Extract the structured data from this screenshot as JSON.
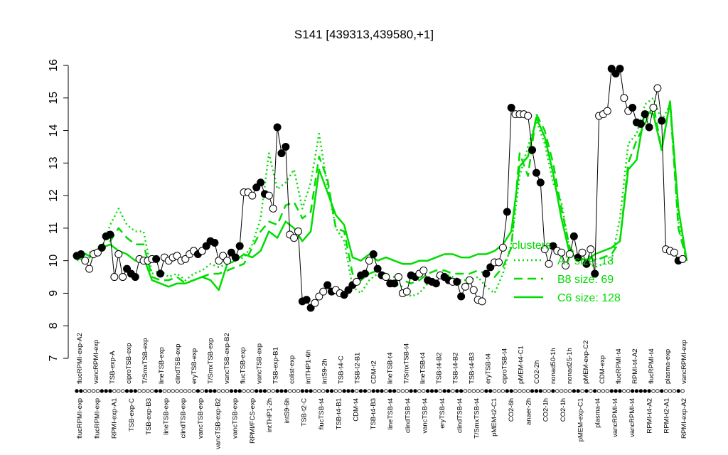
{
  "chart_data": {
    "type": "line",
    "title": "S141 [439313,439580,+1]",
    "xlabel": "",
    "ylabel": "",
    "ylim": [
      7,
      16
    ],
    "yticks": [
      7,
      8,
      9,
      10,
      11,
      12,
      13,
      14,
      15,
      16
    ],
    "top_labels": [
      "flucRPMI-exp-A2",
      "vancRPMI-exp",
      "TSB-exp-A",
      "ciproTSB-exp",
      "T/SmxTSB-exp",
      "lineTSB-exp",
      "clindTSB-exp",
      "eryTSB-exp",
      "T/SmxTSB-exp",
      "vancTSB-exp-B2",
      "flucTSB-exp",
      "vancTSB-exp",
      "TSB-exp-B1",
      "colist-exp",
      "intTHP1-6h",
      "intS9-2h",
      "TSB-t4-C",
      "TSB-t2-B1",
      "CDM-t2",
      "lineTSB-t4",
      "T/SmxTSB-t4",
      "lineTSB-t4",
      "TSB-t4-B2",
      "TSB-t4-B2",
      "TSB-t4-B3",
      "eryTSB-t4",
      "ciproTSB-t4",
      "pMEM-t4-C1",
      "CO2-2h",
      "nonad50-1h",
      "nonad25-1h",
      "pMEM-exp-C2",
      "CDM-exp",
      "flucRPMI-t4",
      "RPMI-t4-A2",
      "flucRPMI-t4",
      "plasma-exp",
      "vancRPMI-exp"
    ],
    "bottom_labels": [
      "flucRPMI-exp",
      "flucRPMI-exp",
      "RPMI-exp-A1",
      "TSB-exp-C",
      "TSB-exp-B3",
      "lineTSB-exp",
      "clindTSB-exp",
      "vancTSB-exp",
      "vancTSB-exp-B2",
      "vancTSB-exp",
      "RPMI/FCS-exp",
      "intTHP1-2h",
      "intS9-6h",
      "TSB-t2-C",
      "flucTSB-t4",
      "TSB-t4-B1",
      "CDM-t4",
      "TSB-t4-B3",
      "lineTSB-t4",
      "clindTSB-t4",
      "vancTSB-t4",
      "eryTSB-t4",
      "clindTSB-t4",
      "T/SmxTSB-t4",
      "pMEM-t2-C1",
      "CO2-6h",
      "anaer-2h",
      "CO2-1h",
      "CO2-1h",
      "pMEM-exp-C1",
      "plasma-t4",
      "vancRPMI-t4",
      "vancRPMI-t4",
      "RPMI-t4-A2",
      "RPMI-t2-A1",
      "RPMI-exp-A2"
    ],
    "series": [
      {
        "name": "A7 size: 13",
        "style": "dotted",
        "color": "#00dd00",
        "x": [
          0,
          2,
          4,
          6,
          8,
          10,
          12,
          14,
          16,
          18,
          20,
          22,
          24,
          26,
          28,
          30,
          32,
          34,
          36,
          38,
          40,
          42,
          44,
          46,
          48,
          50,
          52,
          54,
          56,
          58,
          60,
          62,
          64,
          66,
          68,
          70,
          72,
          74,
          76,
          78,
          80,
          82,
          84,
          86,
          88,
          90,
          92,
          94,
          96,
          98,
          100,
          102,
          104,
          106,
          108,
          110,
          112,
          114,
          116,
          118,
          120,
          122,
          124,
          126,
          128,
          130,
          132,
          134,
          136,
          138,
          140,
          142,
          144,
          146
        ],
        "values": [
          10.2,
          10.2,
          10.3,
          10.4,
          11.1,
          11.6,
          11.1,
          10.9,
          10.9,
          9.6,
          9.7,
          9.5,
          9.6,
          9.4,
          9.6,
          9.7,
          9.9,
          9.8,
          9.9,
          10.0,
          10.1,
          10.5,
          11.3,
          13.3,
          12.2,
          12.4,
          12.8,
          11.6,
          12.4,
          13.9,
          12.3,
          11.0,
          10.6,
          9.2,
          9.0,
          9.4,
          9.6,
          9.5,
          9.3,
          9.2,
          8.9,
          9.0,
          9.3,
          9.5,
          9.6,
          9.5,
          9.4,
          9.4,
          9.5,
          9.2,
          9.0,
          9.6,
          10.5,
          12.6,
          13.5,
          14.3,
          13.6,
          12.4,
          11.8,
          10.3,
          10.0,
          10.0,
          9.8,
          9.9,
          10.0,
          11.3,
          13.6,
          13.9,
          14.8,
          15.0,
          14.3,
          14.8,
          11.2,
          10.0
        ]
      },
      {
        "name": "B8 size: 69",
        "style": "dashed",
        "color": "#00dd00",
        "x": [
          0,
          2,
          4,
          6,
          8,
          10,
          12,
          14,
          16,
          18,
          20,
          22,
          24,
          26,
          28,
          30,
          32,
          34,
          36,
          38,
          40,
          42,
          44,
          46,
          48,
          50,
          52,
          54,
          56,
          58,
          60,
          62,
          64,
          66,
          68,
          70,
          72,
          74,
          76,
          78,
          80,
          82,
          84,
          86,
          88,
          90,
          92,
          94,
          96,
          98,
          100,
          102,
          104,
          106,
          108,
          110,
          112,
          114,
          116,
          118,
          120,
          122,
          124,
          126,
          128,
          130,
          132,
          134,
          136,
          138,
          140,
          142,
          144,
          146
        ],
        "values": [
          10.1,
          10.0,
          10.2,
          10.3,
          10.6,
          11.0,
          10.7,
          10.5,
          10.5,
          9.5,
          9.4,
          9.4,
          9.5,
          9.3,
          9.4,
          9.5,
          9.6,
          9.6,
          9.7,
          9.8,
          9.9,
          10.4,
          10.9,
          11.2,
          11.1,
          11.7,
          11.8,
          11.3,
          11.5,
          13.2,
          12.5,
          11.0,
          10.9,
          9.6,
          9.4,
          9.6,
          9.7,
          9.6,
          9.5,
          9.4,
          9.3,
          9.4,
          9.6,
          9.7,
          9.7,
          9.6,
          9.6,
          9.6,
          9.7,
          9.6,
          9.5,
          9.8,
          10.4,
          13.3,
          12.6,
          14.5,
          14.0,
          13.0,
          11.6,
          10.4,
          10.1,
          10.2,
          10.0,
          10.1,
          10.2,
          10.6,
          13.0,
          13.7,
          14.2,
          14.8,
          13.4,
          14.9,
          11.0,
          10.0
        ]
      },
      {
        "name": "C6 size: 128",
        "style": "solid",
        "color": "#00dd00",
        "x": [
          0,
          2,
          4,
          6,
          8,
          10,
          12,
          14,
          16,
          18,
          20,
          22,
          24,
          26,
          28,
          30,
          32,
          34,
          36,
          38,
          40,
          42,
          44,
          46,
          48,
          50,
          52,
          54,
          56,
          58,
          60,
          62,
          64,
          66,
          68,
          70,
          72,
          74,
          76,
          78,
          80,
          82,
          84,
          86,
          88,
          90,
          92,
          94,
          96,
          98,
          100,
          102,
          104,
          106,
          108,
          110,
          112,
          114,
          116,
          118,
          120,
          122,
          124,
          126,
          128,
          130,
          132,
          134,
          136,
          138,
          140,
          142,
          144,
          146
        ],
        "values": [
          10.0,
          10.2,
          10.1,
          10.4,
          10.5,
          10.3,
          10.2,
          10.0,
          10.1,
          9.4,
          9.3,
          9.2,
          9.3,
          9.3,
          9.4,
          9.5,
          9.4,
          9.1,
          9.9,
          10.0,
          10.2,
          10.1,
          10.3,
          10.9,
          10.7,
          11.2,
          11.0,
          10.6,
          10.9,
          12.8,
          12.1,
          11.4,
          11.1,
          10.1,
          10.0,
          10.2,
          10.0,
          10.1,
          10.0,
          9.9,
          9.9,
          10.0,
          10.0,
          10.1,
          10.2,
          10.2,
          10.1,
          10.1,
          10.2,
          10.2,
          10.3,
          10.5,
          10.9,
          12.9,
          13.2,
          14.4,
          13.8,
          12.7,
          11.3,
          10.2,
          10.1,
          10.0,
          10.2,
          10.3,
          10.4,
          10.6,
          12.8,
          13.1,
          14.6,
          14.5,
          13.4,
          14.9,
          11.6,
          10.0
        ]
      }
    ],
    "points": {
      "x": [
        0,
        1,
        2,
        3,
        4,
        5,
        6,
        7,
        8,
        9,
        10,
        11,
        12,
        13,
        14,
        15,
        16,
        17,
        18,
        19,
        20,
        21,
        22,
        23,
        24,
        25,
        26,
        27,
        28,
        29,
        30,
        31,
        32,
        33,
        34,
        35,
        36,
        37,
        38,
        39,
        40,
        41,
        42,
        43,
        44,
        45,
        46,
        47,
        48,
        49,
        50,
        51,
        52,
        53,
        54,
        55,
        56,
        57,
        58,
        59,
        60,
        61,
        62,
        63,
        64,
        65,
        66,
        67,
        68,
        69,
        70,
        71,
        72,
        73,
        74,
        75,
        76,
        77,
        78,
        79,
        80,
        81,
        82,
        83,
        84,
        85,
        86,
        87,
        88,
        89,
        90,
        91,
        92,
        93,
        94,
        95,
        96,
        97,
        98,
        99,
        100,
        101,
        102,
        103,
        104,
        105,
        106,
        107,
        108,
        109,
        110,
        111,
        112,
        113,
        114,
        115,
        116,
        117,
        118,
        119,
        120,
        121,
        122,
        123,
        124,
        125,
        126,
        127,
        128,
        129,
        130,
        131,
        132,
        133,
        134,
        135,
        136,
        137,
        138,
        139,
        140,
        141,
        142,
        143,
        144,
        145
      ],
      "values": [
        10.15,
        10.2,
        10.0,
        9.75,
        10.2,
        10.25,
        10.4,
        10.75,
        10.8,
        9.5,
        10.2,
        9.5,
        9.75,
        9.6,
        9.5,
        10.05,
        10.0,
        10.0,
        10.05,
        10.05,
        9.6,
        10.1,
        10.0,
        10.1,
        10.15,
        10.0,
        10.05,
        10.2,
        10.3,
        10.2,
        10.3,
        10.45,
        10.6,
        10.55,
        10.0,
        10.15,
        10.0,
        10.25,
        10.1,
        10.45,
        12.1,
        12.1,
        12.0,
        12.25,
        12.4,
        12.05,
        12.0,
        11.6,
        14.1,
        13.3,
        13.5,
        10.8,
        10.7,
        10.9,
        8.75,
        8.8,
        8.55,
        8.7,
        8.9,
        9.05,
        9.25,
        9.05,
        9.1,
        9.0,
        8.95,
        9.1,
        9.25,
        9.35,
        9.55,
        9.6,
        10.0,
        10.2,
        9.75,
        9.55,
        9.5,
        9.3,
        9.3,
        9.5,
        9.0,
        9.05,
        9.55,
        9.5,
        9.6,
        9.7,
        9.4,
        9.35,
        9.3,
        9.55,
        9.5,
        9.4,
        9.35,
        9.35,
        8.9,
        9.2,
        9.4,
        9.1,
        8.8,
        8.75,
        9.6,
        9.8,
        9.95,
        9.95,
        10.4,
        11.5,
        14.7,
        14.5,
        14.5,
        14.5,
        14.45,
        13.4,
        12.7,
        12.4,
        10.35,
        9.9,
        10.45,
        10.3,
        10.25,
        9.85,
        10.2,
        10.75,
        10.1,
        10.25,
        9.9,
        10.35,
        9.6,
        14.45,
        14.5,
        14.6,
        15.9,
        15.75,
        15.9,
        15.0,
        14.6,
        14.7,
        14.25,
        14.2,
        14.5,
        14.1,
        14.7,
        15.3,
        14.3,
        10.35,
        10.3,
        10.25,
        10.0,
        10.05
      ],
      "filled": [
        1,
        1,
        0,
        0,
        0,
        0,
        1,
        1,
        1,
        0,
        0,
        0,
        1,
        1,
        1,
        0,
        0,
        0,
        0,
        1,
        1,
        0,
        0,
        0,
        0,
        0,
        0,
        0,
        0,
        1,
        0,
        1,
        1,
        1,
        0,
        0,
        0,
        1,
        1,
        1,
        0,
        0,
        0,
        1,
        1,
        1,
        0,
        0,
        1,
        1,
        1,
        0,
        0,
        0,
        1,
        1,
        1,
        0,
        0,
        0,
        1,
        1,
        0,
        0,
        1,
        1,
        1,
        0,
        1,
        1,
        0,
        1,
        1,
        1,
        0,
        1,
        1,
        0,
        0,
        0,
        1,
        1,
        0,
        0,
        1,
        1,
        1,
        0,
        1,
        1,
        0,
        1,
        1,
        0,
        0,
        0,
        0,
        0,
        1,
        1,
        0,
        0,
        0,
        1,
        1,
        0,
        0,
        0,
        0,
        1,
        1,
        1,
        0,
        0,
        1,
        0,
        0,
        0,
        0,
        1,
        1,
        0,
        1,
        0,
        1,
        0,
        0,
        0,
        1,
        1,
        1,
        0,
        0,
        1,
        1,
        1,
        1,
        1,
        0,
        0,
        1,
        0,
        0,
        0,
        1,
        0
      ]
    }
  },
  "legend": {
    "heading": "clusters",
    "entries": [
      "A7 size: 13",
      "B8 size: 69",
      "C6 size: 128"
    ]
  }
}
